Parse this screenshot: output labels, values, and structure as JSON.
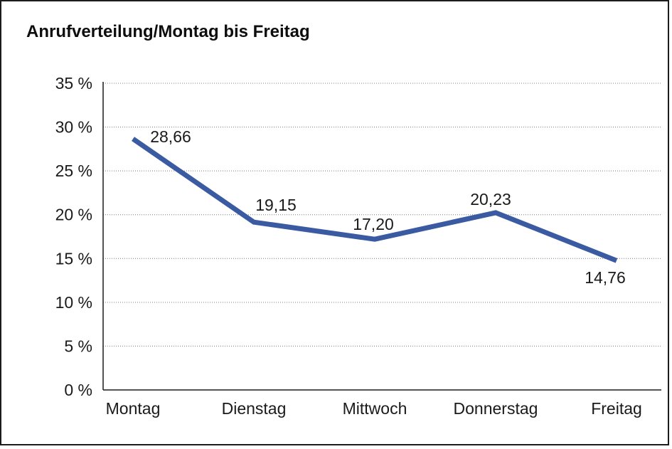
{
  "chart_data": {
    "type": "line",
    "title": "Anrufverteilung/Montag bis Freitag",
    "categories": [
      "Montag",
      "Dienstag",
      "Mittwoch",
      "Donnerstag",
      "Freitag"
    ],
    "values": [
      28.66,
      19.15,
      17.2,
      20.23,
      14.76
    ],
    "value_labels": [
      "28,66",
      "19,15",
      "17,20",
      "20,23",
      "14,76"
    ],
    "value_label_placement": [
      "right-of-point",
      "above-right",
      "above",
      "above",
      "below"
    ],
    "y_tick_values": [
      35,
      30,
      25,
      20,
      15,
      10,
      5,
      0
    ],
    "y_tick_labels": [
      "35 %",
      "30 %",
      "25 %",
      "20 %",
      "15 %",
      "10 %",
      "5 %",
      "0 %"
    ],
    "ylim": [
      0,
      35
    ],
    "xlabel": "",
    "ylabel": "",
    "legend": "none",
    "grid": "horizontal-dotted",
    "colors": {
      "series_line": "#3a5aa1",
      "gridline": "#7f7f7f",
      "axis": "#1c1c1c",
      "text": "#1a1a1a",
      "background": "#ffffff"
    }
  }
}
